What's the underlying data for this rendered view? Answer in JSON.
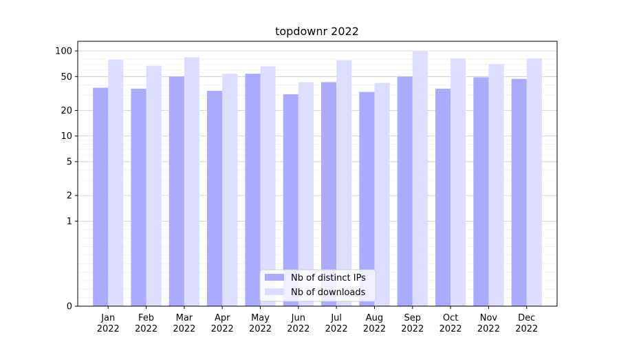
{
  "chart_data": {
    "type": "bar",
    "title": "topdownr 2022",
    "xlabel": "",
    "ylabel": "",
    "y_scale": "symlog",
    "ylim": [
      0,
      130
    ],
    "y_ticks": [
      0,
      1,
      2,
      5,
      10,
      20,
      50,
      100
    ],
    "y_tick_labels": [
      "0",
      "1",
      "2",
      "5",
      "10",
      "20",
      "50",
      "100"
    ],
    "categories": [
      [
        "Jan",
        "2022"
      ],
      [
        "Feb",
        "2022"
      ],
      [
        "Mar",
        "2022"
      ],
      [
        "Apr",
        "2022"
      ],
      [
        "May",
        "2022"
      ],
      [
        "Jun",
        "2022"
      ],
      [
        "Jul",
        "2022"
      ],
      [
        "Aug",
        "2022"
      ],
      [
        "Sep",
        "2022"
      ],
      [
        "Oct",
        "2022"
      ],
      [
        "Nov",
        "2022"
      ],
      [
        "Dec",
        "2022"
      ]
    ],
    "series": [
      {
        "name": "Nb of distinct IPs",
        "color": "#aaaaff",
        "values": [
          37,
          36,
          50,
          34,
          54,
          31,
          43,
          33,
          50,
          36,
          49,
          47
        ]
      },
      {
        "name": "Nb of downloads",
        "color": "#ddddff",
        "values": [
          79,
          67,
          84,
          54,
          66,
          43,
          78,
          42,
          98,
          82,
          70,
          82
        ]
      }
    ],
    "grid": true,
    "legend_position": "bottom-center"
  }
}
